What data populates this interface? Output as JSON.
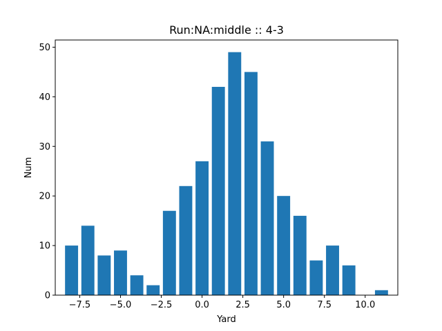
{
  "chart_data": {
    "type": "bar",
    "title": "Run:NA:middle :: 4-3",
    "xlabel": "Yard",
    "ylabel": "Num",
    "x": [
      -8,
      -7,
      -6,
      -5,
      -4,
      -3,
      -2,
      -1,
      0,
      1,
      2,
      3,
      4,
      5,
      6,
      7,
      8,
      9,
      11
    ],
    "values": [
      10,
      14,
      8,
      9,
      4,
      2,
      17,
      22,
      27,
      42,
      49,
      45,
      31,
      20,
      16,
      7,
      10,
      6,
      1
    ],
    "xlim": [
      -9.0,
      12.0
    ],
    "ylim": [
      0,
      51.45
    ],
    "xticks": [
      -7.5,
      -5.0,
      -2.5,
      0.0,
      2.5,
      5.0,
      7.5,
      10.0
    ],
    "xtick_labels": [
      "−7.5",
      "−5.0",
      "−2.5",
      "0.0",
      "2.5",
      "5.0",
      "7.5",
      "10.0"
    ],
    "yticks": [
      0,
      10,
      20,
      30,
      40,
      50
    ],
    "ytick_labels": [
      "0",
      "10",
      "20",
      "30",
      "40",
      "50"
    ],
    "bar_width": 0.8,
    "bar_color": "#1f77b4",
    "grid": false,
    "legend": "none"
  }
}
